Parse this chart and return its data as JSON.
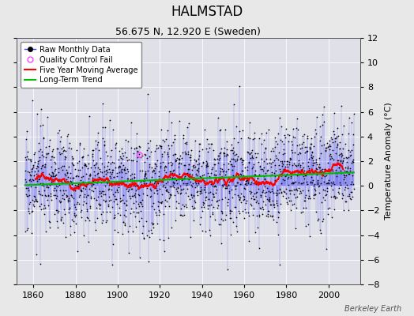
{
  "title": "HALMSTAD",
  "subtitle": "56.675 N, 12.920 E (Sweden)",
  "ylabel": "Temperature Anomaly (°C)",
  "credit": "Berkeley Earth",
  "xlim": [
    1852,
    2015
  ],
  "ylim": [
    -8,
    12
  ],
  "yticks": [
    -8,
    -6,
    -4,
    -2,
    0,
    2,
    4,
    6,
    8,
    10,
    12
  ],
  "xticks": [
    1860,
    1880,
    1900,
    1920,
    1940,
    1960,
    1980,
    2000
  ],
  "line_color": "#4444FF",
  "marker_color": "#000000",
  "moving_avg_color": "#FF0000",
  "trend_color": "#00BB00",
  "qc_fail_color": "#FF44FF",
  "plot_bg_color": "#E0E0E8",
  "fig_bg_color": "#E8E8E8",
  "seed": 17,
  "start_year": 1856.0,
  "end_year": 2012.0,
  "n_months": 1872,
  "qc_fail_x": 1910.5,
  "qc_fail_y": 2.5,
  "title_fontsize": 12,
  "subtitle_fontsize": 9,
  "tick_fontsize": 8,
  "ylabel_fontsize": 8,
  "legend_fontsize": 7,
  "credit_fontsize": 7
}
